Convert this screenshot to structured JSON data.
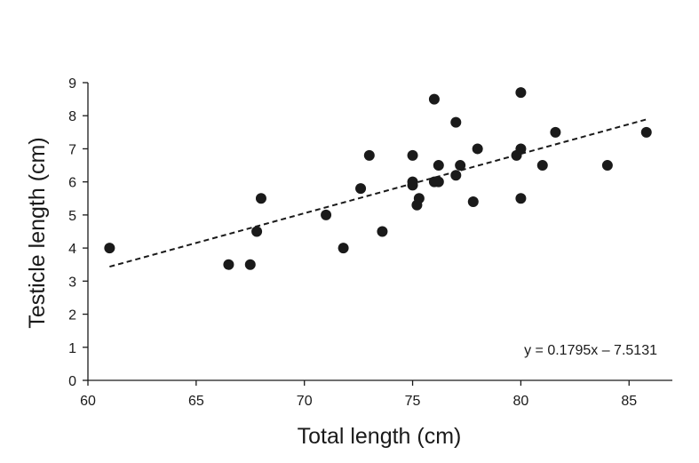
{
  "chart_data": {
    "type": "scatter",
    "title": "",
    "xlabel": "Total length (cm)",
    "ylabel": "Testicle length (cm)",
    "xlim": [
      60,
      87
    ],
    "ylim": [
      0,
      9
    ],
    "xticks": [
      60,
      65,
      70,
      75,
      80,
      85
    ],
    "yticks": [
      0,
      1,
      2,
      3,
      4,
      5,
      6,
      7,
      8,
      9
    ],
    "grid": false,
    "points": [
      {
        "x": 61,
        "y": 4.0
      },
      {
        "x": 66.5,
        "y": 3.5
      },
      {
        "x": 67.5,
        "y": 3.5
      },
      {
        "x": 67.8,
        "y": 4.5
      },
      {
        "x": 68,
        "y": 5.5
      },
      {
        "x": 71,
        "y": 5.0
      },
      {
        "x": 71.8,
        "y": 4.0
      },
      {
        "x": 72.6,
        "y": 5.8
      },
      {
        "x": 73,
        "y": 6.8
      },
      {
        "x": 73.6,
        "y": 4.5
      },
      {
        "x": 75,
        "y": 6.8
      },
      {
        "x": 75,
        "y": 6.0
      },
      {
        "x": 75,
        "y": 5.9
      },
      {
        "x": 75.2,
        "y": 5.3
      },
      {
        "x": 75.3,
        "y": 5.5
      },
      {
        "x": 76,
        "y": 8.5
      },
      {
        "x": 76,
        "y": 6.0
      },
      {
        "x": 76.2,
        "y": 6.0
      },
      {
        "x": 76.2,
        "y": 6.5
      },
      {
        "x": 77,
        "y": 7.8
      },
      {
        "x": 77,
        "y": 6.2
      },
      {
        "x": 77.2,
        "y": 6.5
      },
      {
        "x": 77.8,
        "y": 5.4
      },
      {
        "x": 78,
        "y": 7.0
      },
      {
        "x": 79.8,
        "y": 6.8
      },
      {
        "x": 80,
        "y": 8.7
      },
      {
        "x": 80,
        "y": 7.0
      },
      {
        "x": 80,
        "y": 5.5
      },
      {
        "x": 81,
        "y": 6.5
      },
      {
        "x": 81.6,
        "y": 7.5
      },
      {
        "x": 84,
        "y": 6.5
      },
      {
        "x": 85.8,
        "y": 7.5
      }
    ],
    "trendline": {
      "style": "dashed",
      "slope": 0.1795,
      "intercept": -7.5131,
      "x_range": [
        61,
        85.8
      ]
    },
    "annotations": [
      "y = 0.1795x – 7.5131"
    ]
  }
}
